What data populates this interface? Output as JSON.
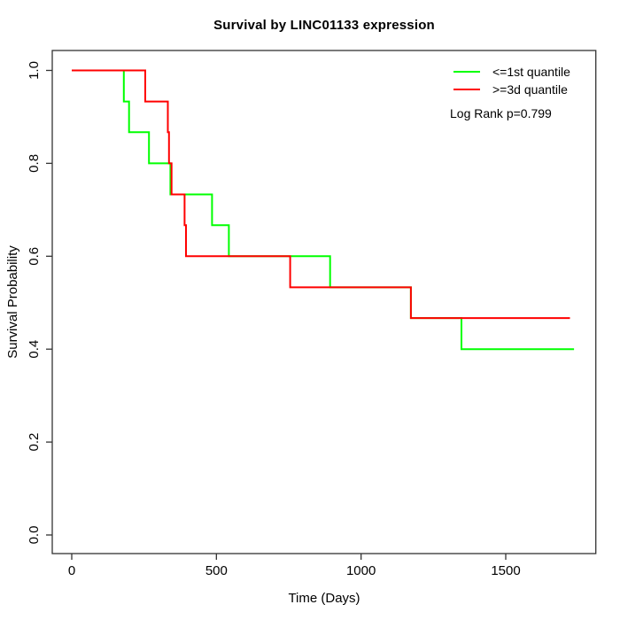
{
  "page": {
    "background": "#ffffff"
  },
  "chart_data": {
    "type": "line",
    "subtype": "kaplan-meier-step-curve",
    "title": "Survival by LINC01133 expression",
    "xlabel": "Time (Days)",
    "ylabel": "Survival Probability",
    "xlim": [
      0,
      1810
    ],
    "ylim": [
      0.0,
      1.0
    ],
    "xticks": [
      "0",
      "500",
      "1000",
      "1500"
    ],
    "xtick_values": [
      0,
      500,
      1000,
      1500
    ],
    "yticks": [
      "0.0",
      "0.2",
      "0.4",
      "0.6",
      "0.8",
      "1.0"
    ],
    "ytick_values": [
      0.0,
      0.2,
      0.4,
      0.6,
      0.8,
      1.0
    ],
    "grid": false,
    "legend_position": "top-right",
    "axis_color": "#333333",
    "series": [
      {
        "name": "<=1st quantile",
        "color": "#00ff00",
        "steps": [
          [
            0,
            1.0
          ],
          [
            180,
            0.933
          ],
          [
            198,
            0.867
          ],
          [
            267,
            0.8
          ],
          [
            341,
            0.733
          ],
          [
            485,
            0.667
          ],
          [
            543,
            0.6
          ],
          [
            893,
            0.533
          ],
          [
            1172,
            0.467
          ],
          [
            1347,
            0.4
          ]
        ],
        "end_time": 1736
      },
      {
        "name": ">=3d quantile",
        "color": "#ff0000",
        "steps": [
          [
            0,
            1.0
          ],
          [
            254,
            0.933
          ],
          [
            332,
            0.867
          ],
          [
            336,
            0.8
          ],
          [
            345,
            0.733
          ],
          [
            390,
            0.667
          ],
          [
            395,
            0.6
          ],
          [
            755,
            0.533
          ],
          [
            1172,
            0.467
          ]
        ],
        "end_time": 1722
      }
    ],
    "annotations": [
      "Log Rank p=0.799"
    ]
  }
}
